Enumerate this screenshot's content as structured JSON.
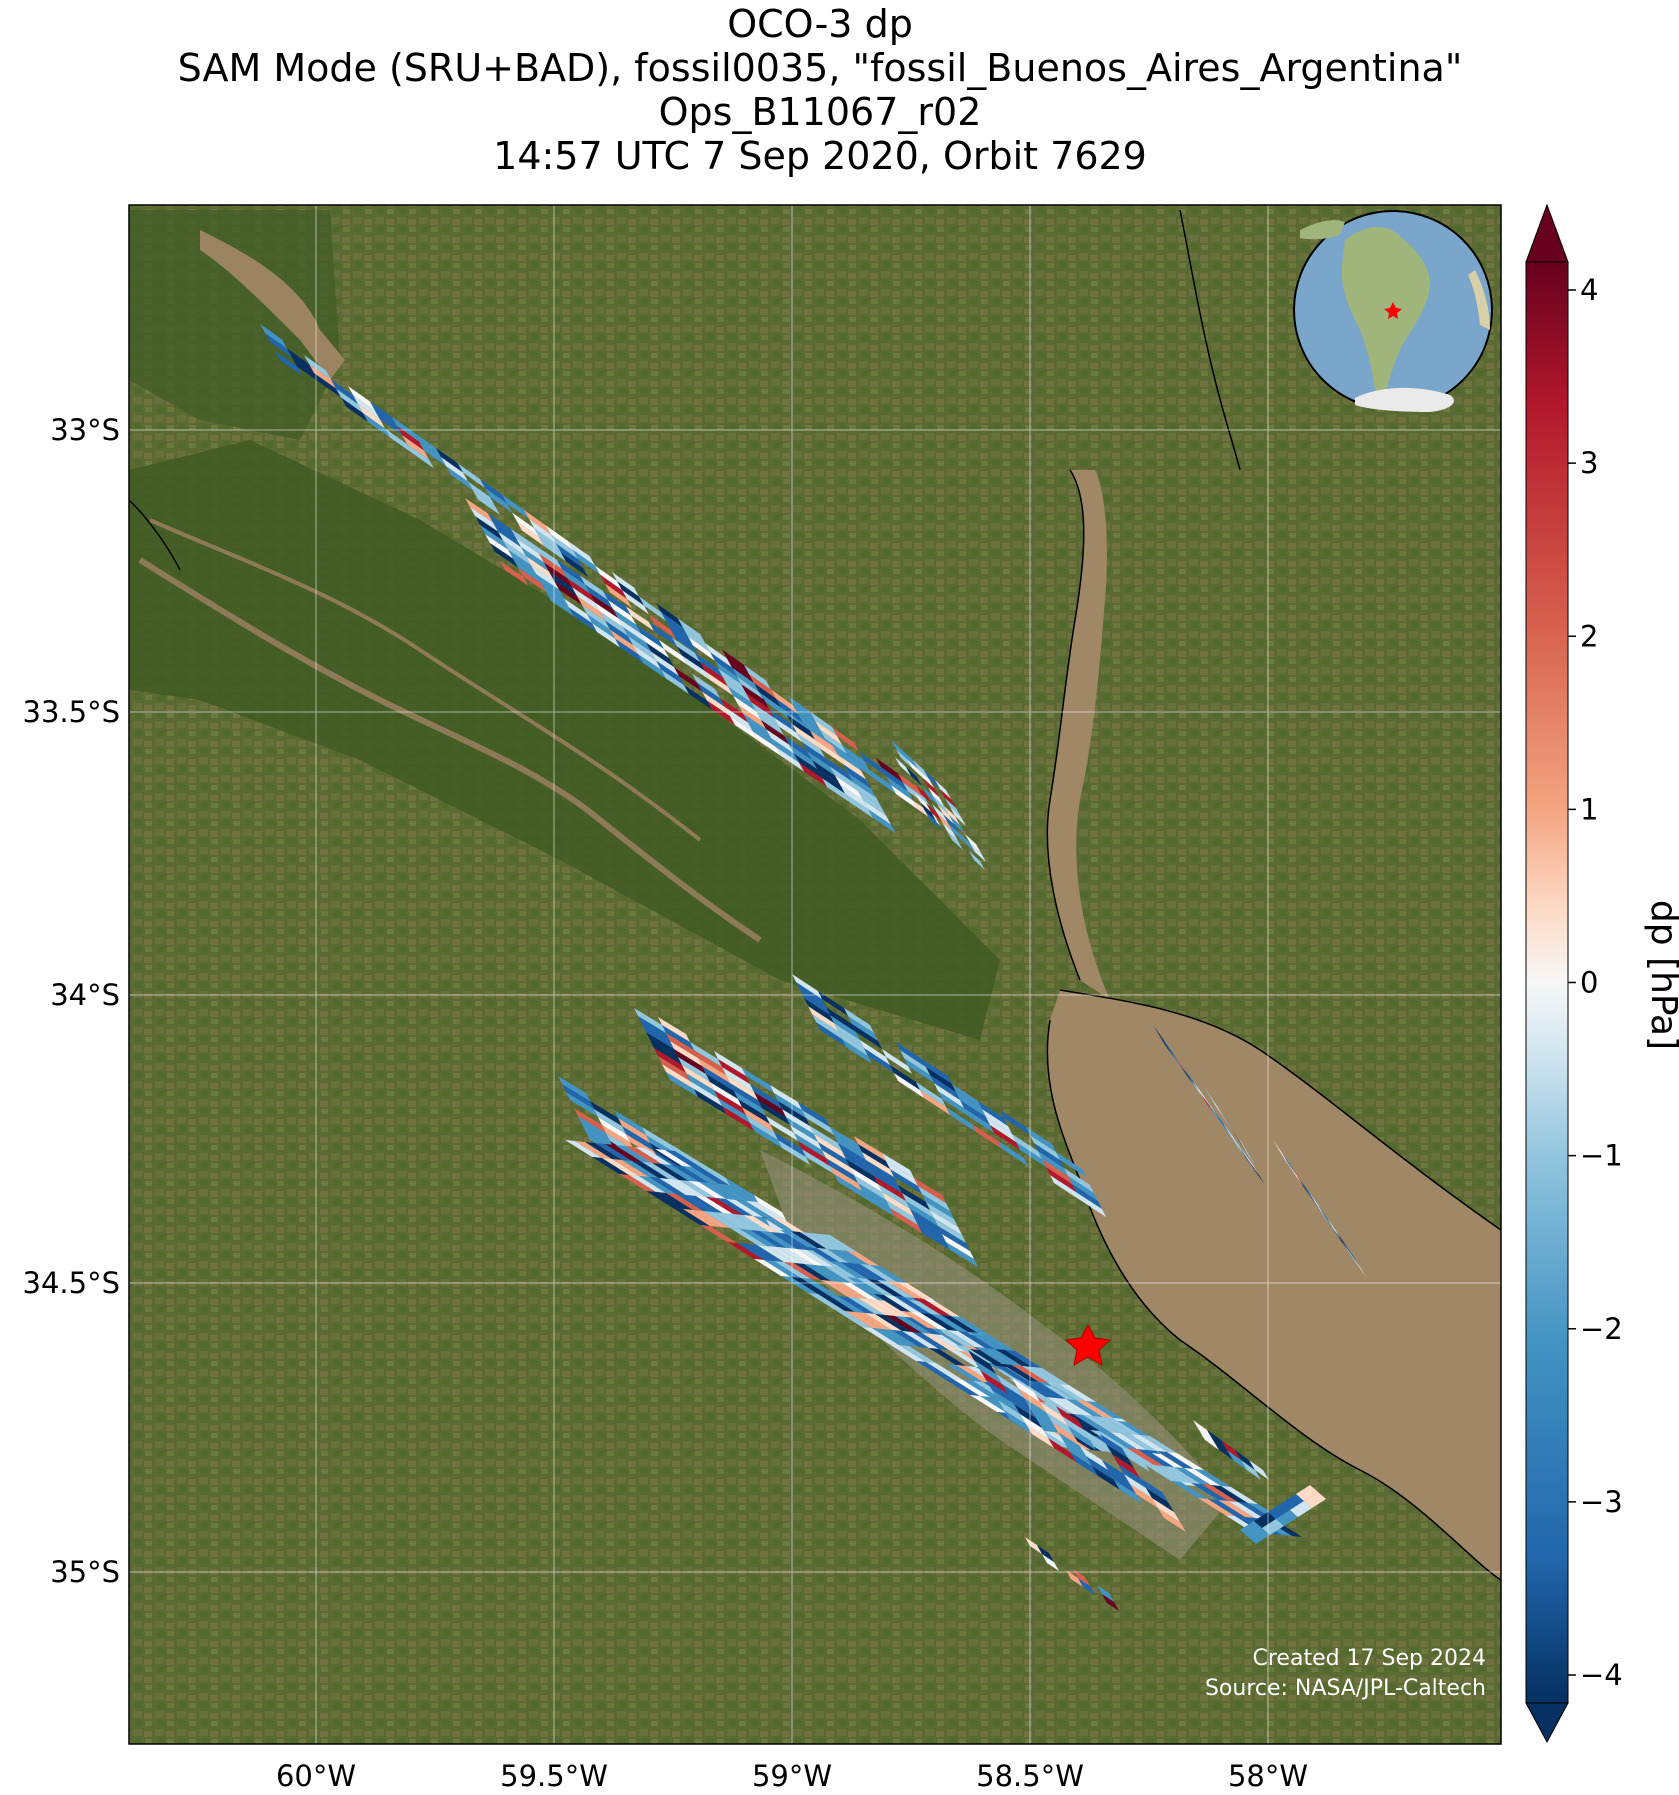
{
  "title": {
    "line1": "OCO-3 dp",
    "line2": "SAM Mode (SRU+BAD), fossil0035, \"fossil_Buenos_Aires_Argentina\"",
    "line3": "Ops_B11067_r02",
    "line4": "14:57 UTC 7 Sep 2020, Orbit 7629"
  },
  "map": {
    "x_ticks": [
      "60°W",
      "59.5°W",
      "59°W",
      "58.5°W",
      "58°W"
    ],
    "y_ticks": [
      "33°S",
      "33.5°S",
      "34°S",
      "34.5°S",
      "35°S"
    ],
    "credit_line1": "Created 17 Sep 2024",
    "credit_line2": "Source: NASA/JPL-Caltech",
    "target_marker": "red-star"
  },
  "colorbar": {
    "label": "dp [hPa]",
    "ticks": [
      "4",
      "3",
      "2",
      "1",
      "0",
      "−1",
      "−2",
      "−3",
      "−4"
    ],
    "colormap": "RdBu_r",
    "range": [
      -4,
      4
    ],
    "extend": "both"
  },
  "colors": {
    "land": "#5c6b34",
    "river_water": "#a08866",
    "ocean": "#5d87b8"
  }
}
